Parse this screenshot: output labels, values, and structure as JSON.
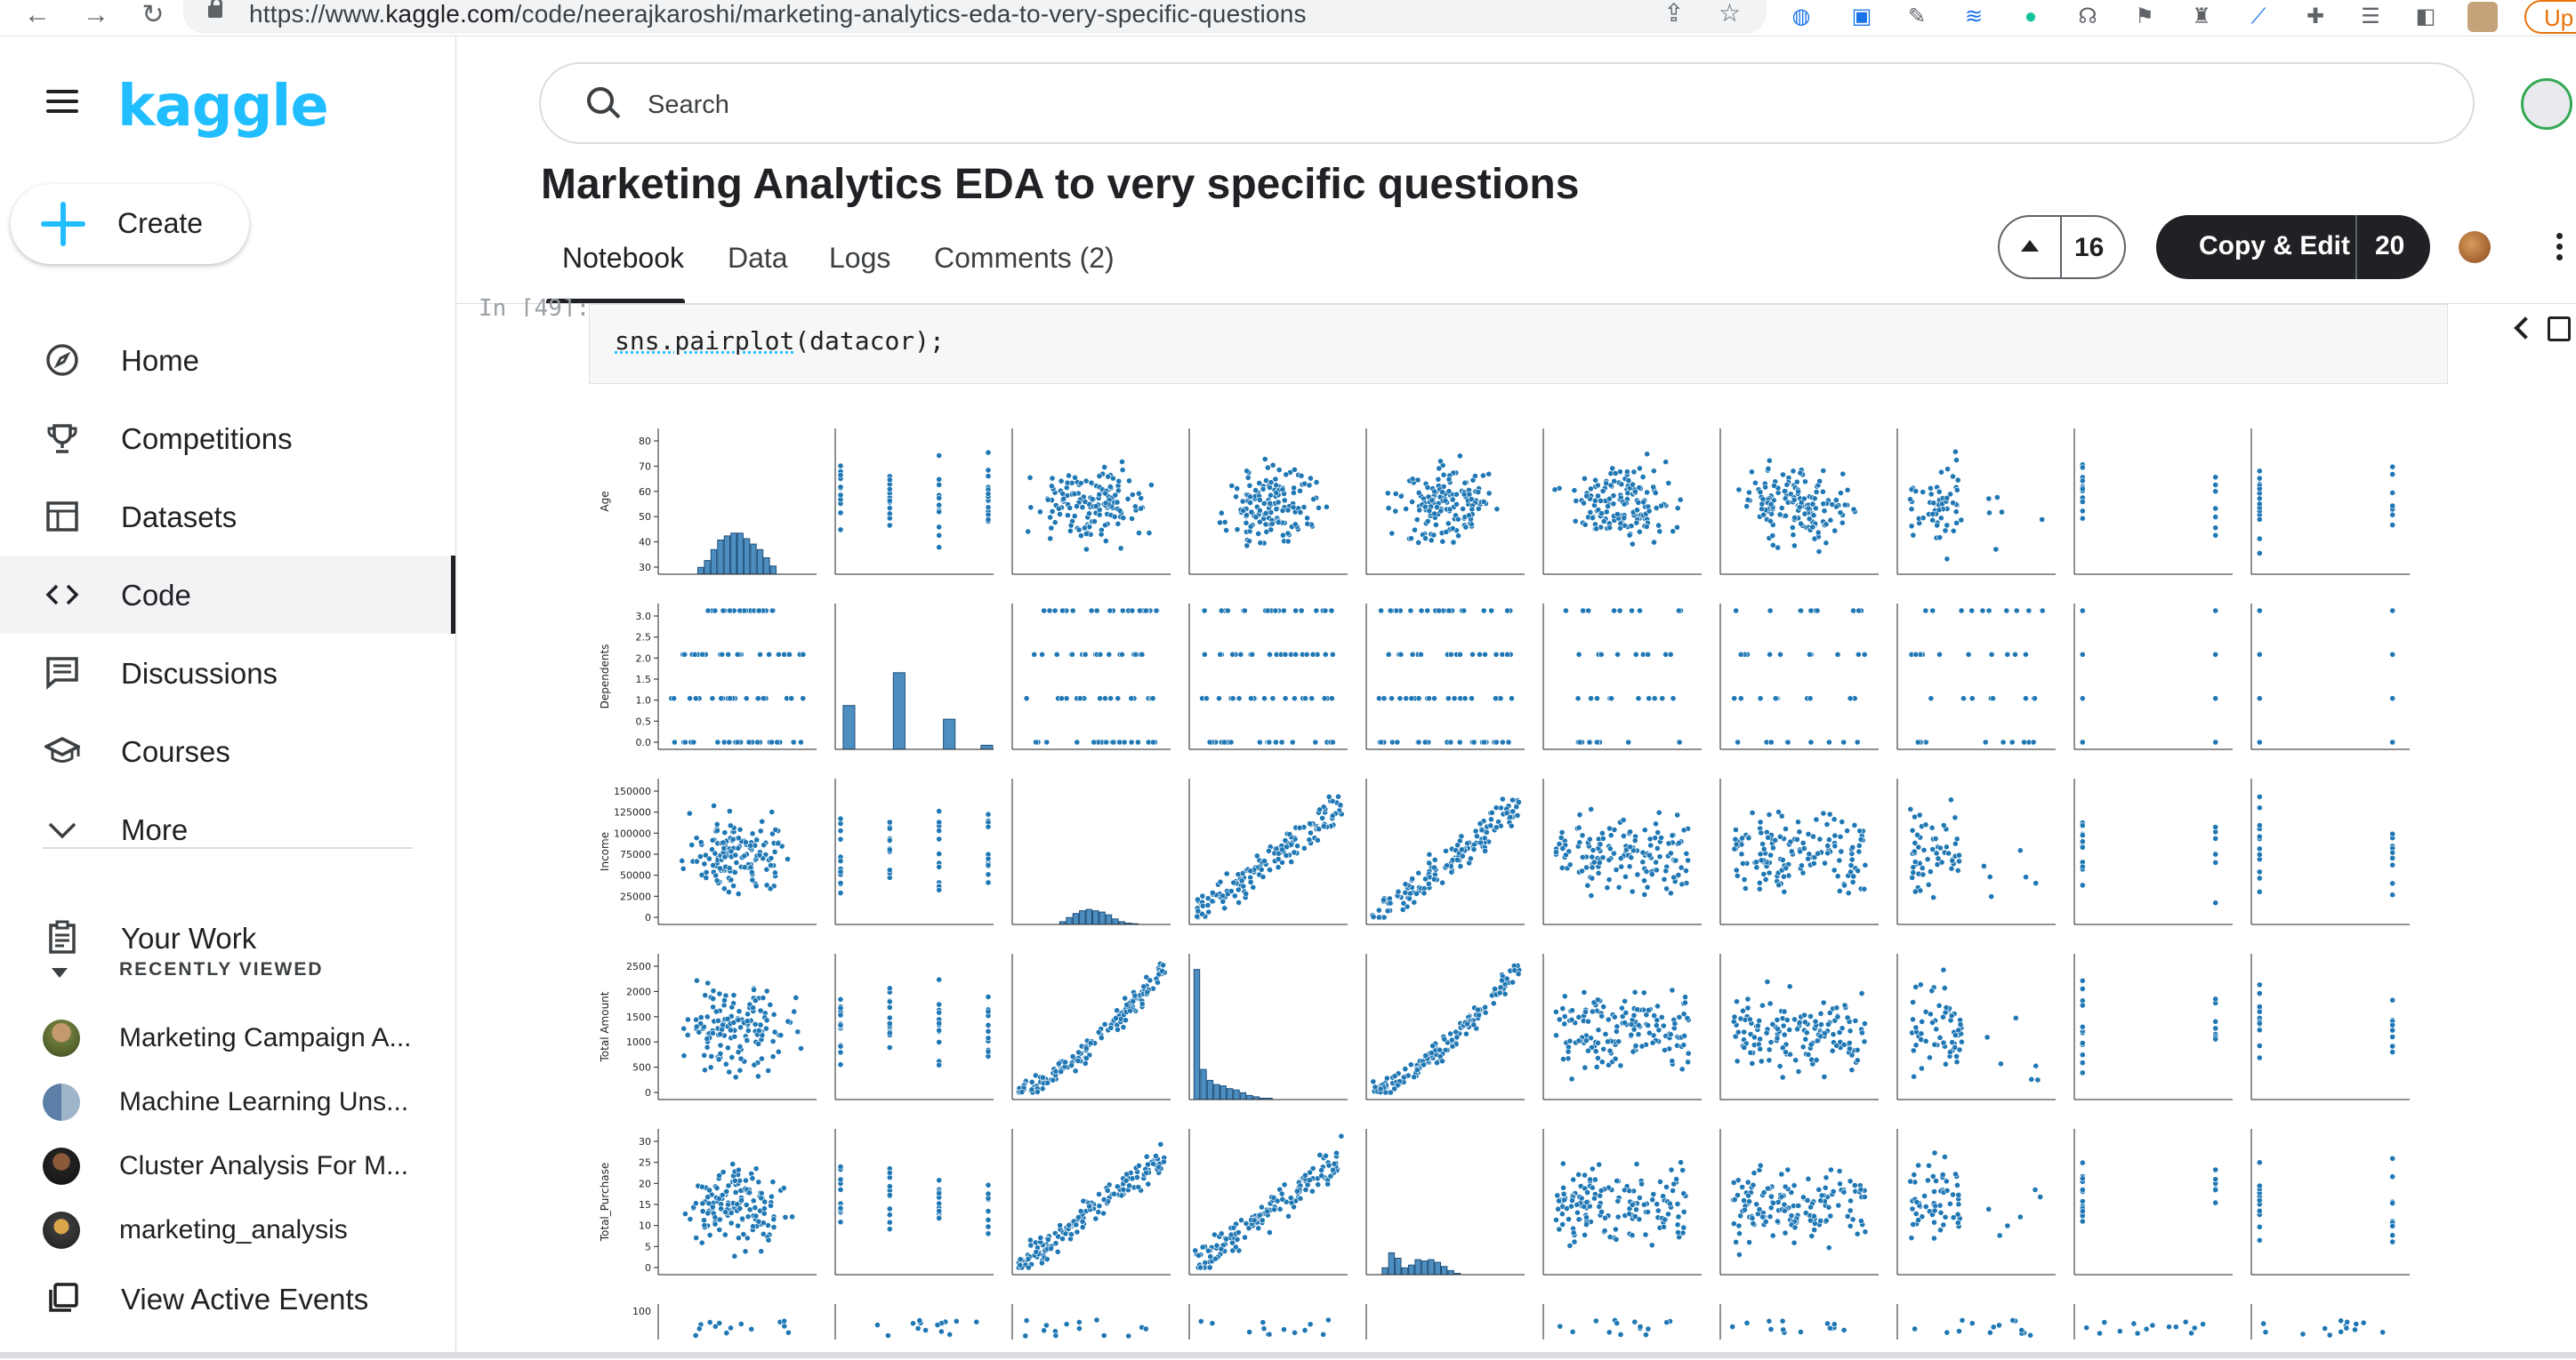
{
  "browser": {
    "url_prefix": "https://www.",
    "url_host": "kaggle.com",
    "url_path": "/code/neerajkaroshi/marketing-analytics-eda-to-very-specific-questions",
    "update_label": "Up"
  },
  "sidebar": {
    "logo": "kaggle",
    "create_label": "Create",
    "items": [
      {
        "label": "Home",
        "icon": "compass-icon"
      },
      {
        "label": "Competitions",
        "icon": "trophy-icon"
      },
      {
        "label": "Datasets",
        "icon": "table-icon"
      },
      {
        "label": "Code",
        "icon": "code-icon"
      },
      {
        "label": "Discussions",
        "icon": "comment-icon"
      },
      {
        "label": "Courses",
        "icon": "school-icon"
      },
      {
        "label": "More",
        "icon": "chevron-down-icon"
      }
    ],
    "your_work": "Your Work",
    "recently_viewed_header": "RECENTLY VIEWED",
    "recent": [
      {
        "label": "Marketing Campaign A..."
      },
      {
        "label": "Machine Learning Uns..."
      },
      {
        "label": "Cluster Analysis For M..."
      },
      {
        "label": "marketing_analysis"
      }
    ],
    "view_active_events": "View Active Events"
  },
  "header": {
    "search_placeholder": "Search",
    "title": "Marketing Analytics EDA to very specific questions",
    "tabs": [
      {
        "label": "Notebook"
      },
      {
        "label": "Data"
      },
      {
        "label": "Logs"
      },
      {
        "label": "Comments (2)"
      }
    ],
    "upvotes": "16",
    "copy_edit_label": "Copy & Edit",
    "copy_edit_count": "20"
  },
  "cell": {
    "in_label": "In [49]:",
    "code_fn": "sns.pairplot",
    "code_rest": "(datacor);"
  },
  "chart_data": {
    "type": "scatter",
    "title": "",
    "variables": [
      "Age",
      "Dependents",
      "Income",
      "Total_Amount",
      "Total_Purchase"
    ],
    "row_labels": [
      "Age",
      "Dependents",
      "Income",
      "Total Amount",
      "Total_Purchase"
    ],
    "ylim": {
      "Age": [
        25,
        85
      ],
      "Dependents": [
        -0.1,
        3.1
      ],
      "Income": [
        -3000,
        165000
      ],
      "Total_Amount": [
        -50,
        2600
      ],
      "Total_Purchase": [
        -1,
        33
      ]
    },
    "yticks": {
      "Age": [
        "30",
        "40",
        "50",
        "60",
        "70",
        "80"
      ],
      "Dependents": [
        "0.0",
        "0.5",
        "1.0",
        "1.5",
        "2.0",
        "2.5",
        "3.0"
      ],
      "Income": [
        "0",
        "25000",
        "50000",
        "75000",
        "100000",
        "125000",
        "150000"
      ],
      "Total_Amount": [
        "0",
        "500",
        "1000",
        "1500",
        "2000",
        "2500"
      ],
      "Total_Purchase": [
        "0",
        "5",
        "10",
        "15",
        "20",
        "25",
        "30"
      ]
    },
    "partial_row_tick": "100",
    "diagonal": "histogram",
    "grid": false,
    "point_color": "#1f77b4"
  }
}
